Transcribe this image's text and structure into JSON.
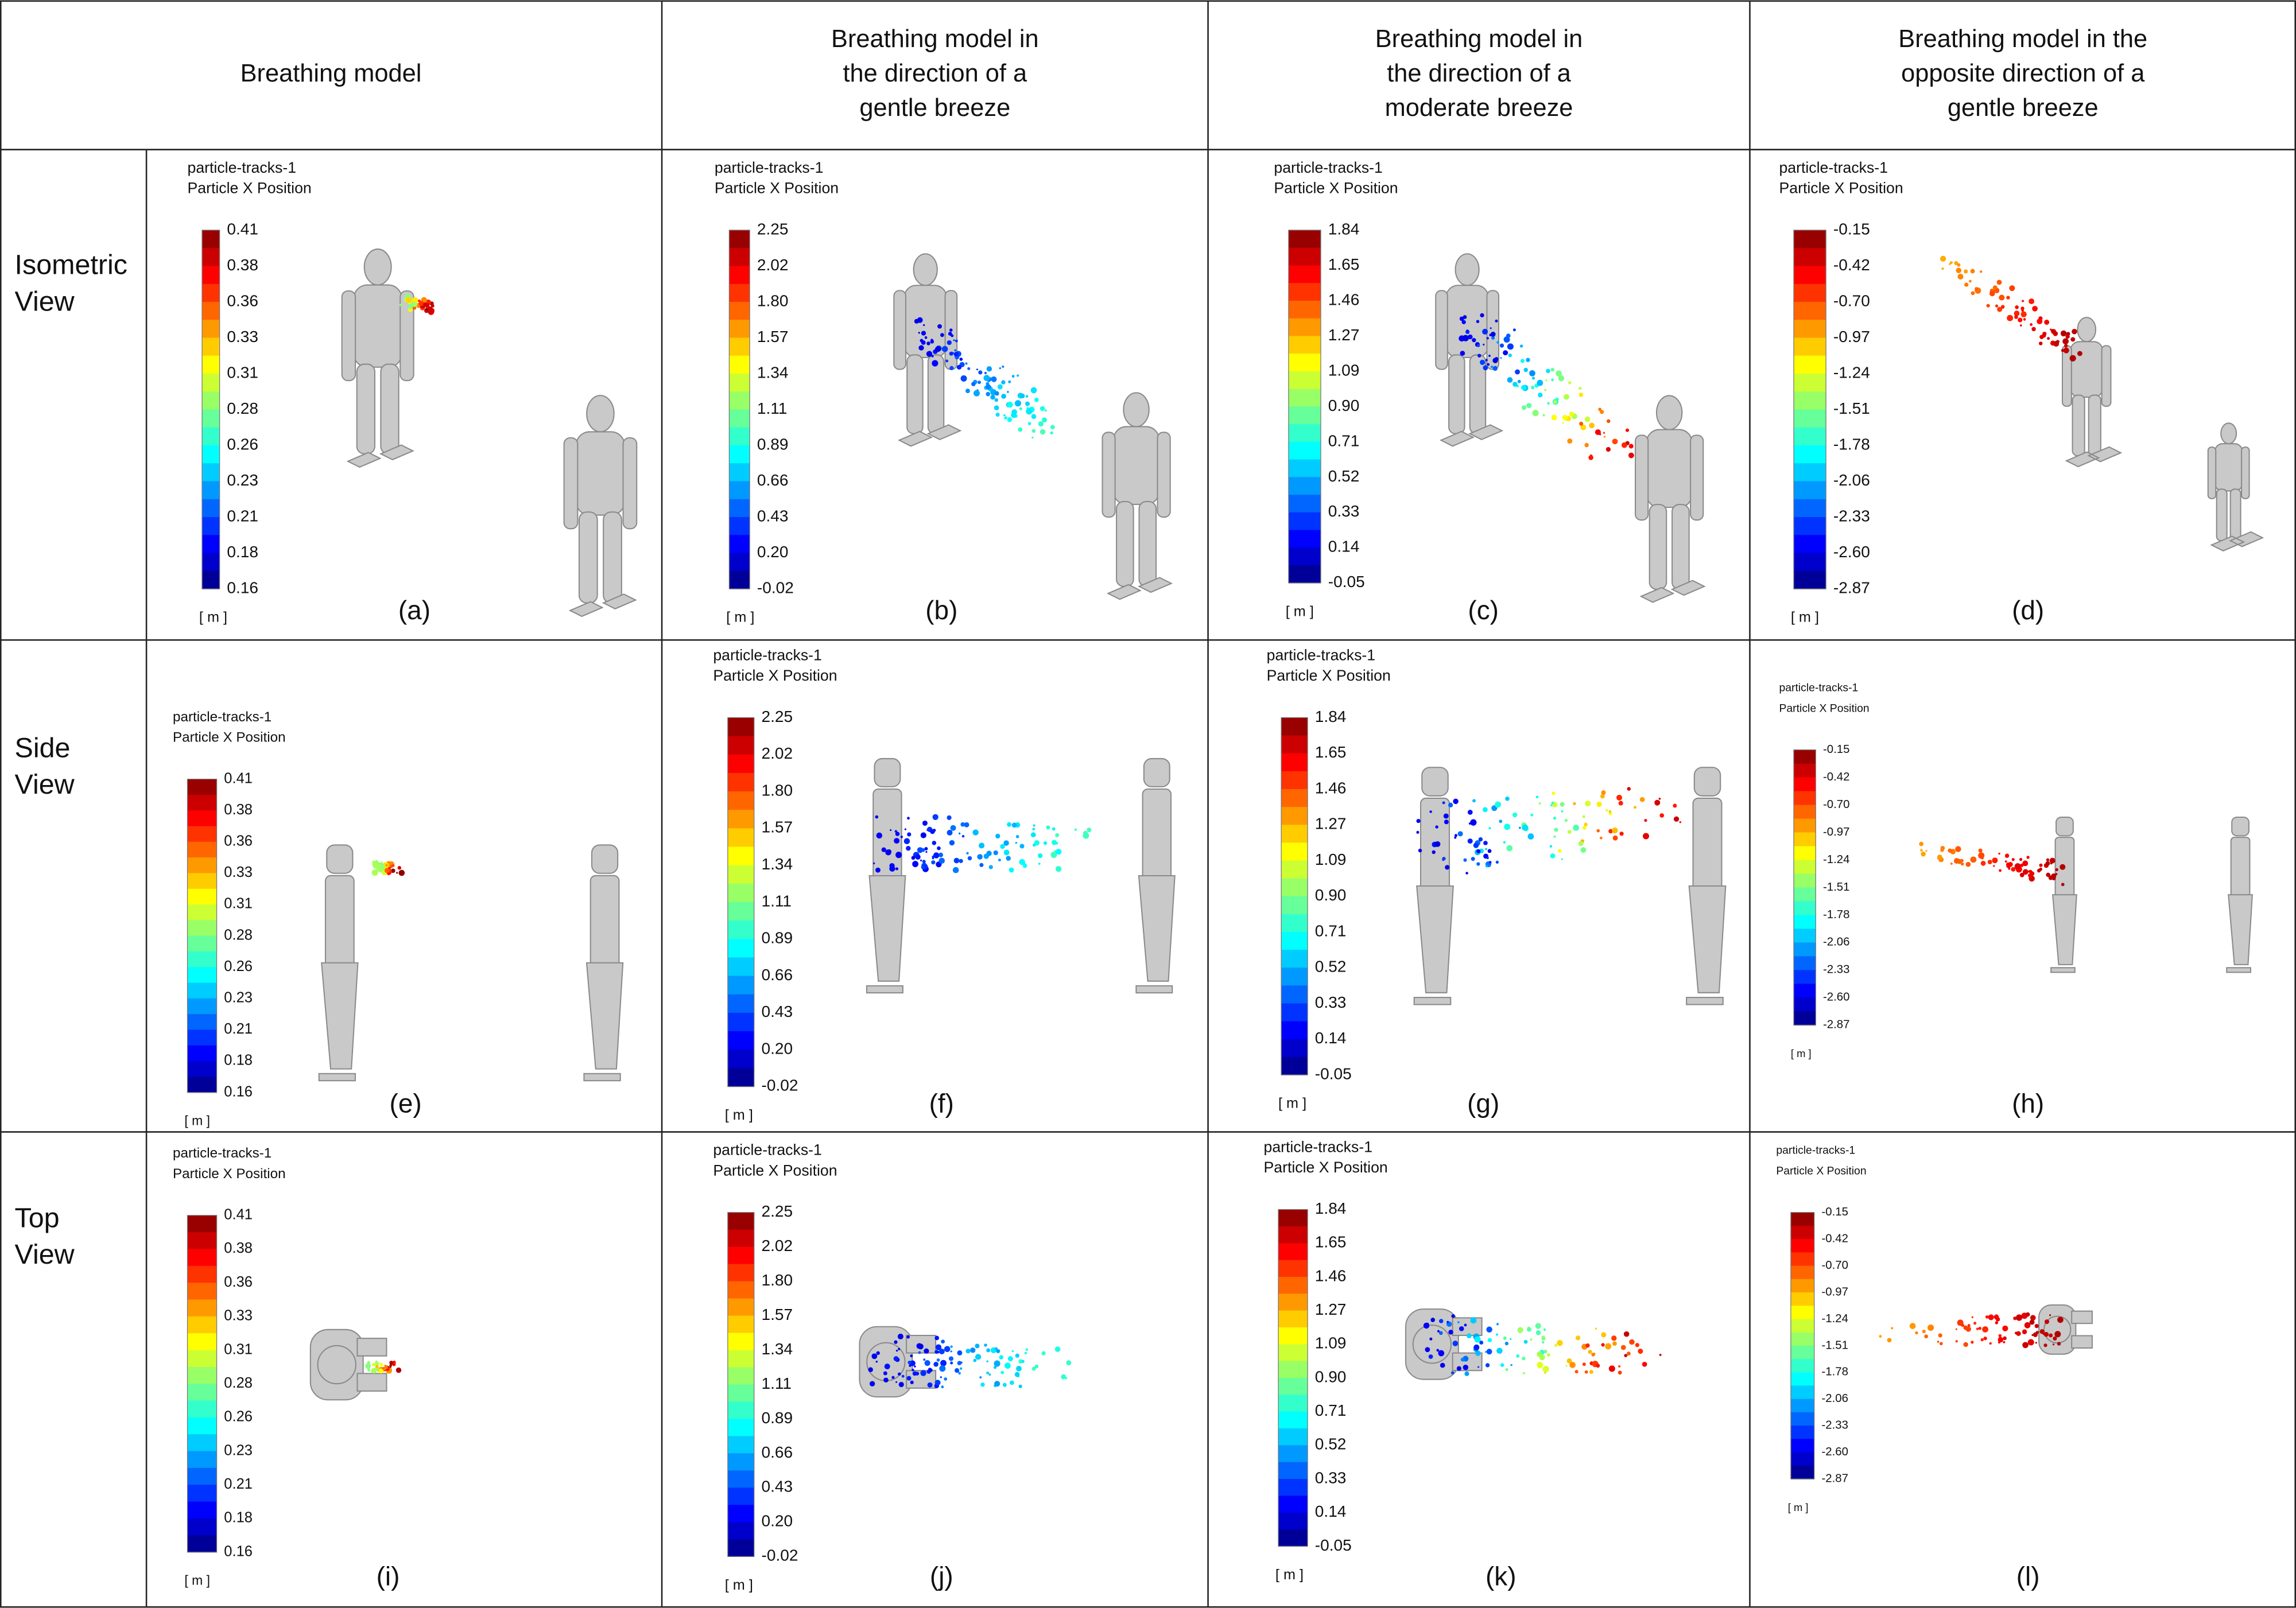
{
  "header": [
    [
      "Breathing model"
    ],
    [
      "Breathing model in",
      "the direction of a",
      "gentle breeze"
    ],
    [
      "Breathing model in",
      "the direction of a",
      "moderate breeze"
    ],
    [
      "Breathing model in the",
      "opposite direction of a",
      "gentle breeze"
    ]
  ],
  "colorbar_ticks": [
    [
      "0.41",
      "0.38",
      "0.36",
      "0.33",
      "0.31",
      "0.28",
      "0.26",
      "0.23",
      "0.21",
      "0.18",
      "0.16"
    ],
    [
      "2.25",
      "2.02",
      "1.80",
      "1.57",
      "1.34",
      "1.11",
      "0.89",
      "0.66",
      "0.43",
      "0.20",
      "-0.02"
    ],
    [
      "1.84",
      "1.65",
      "1.46",
      "1.27",
      "1.09",
      "0.90",
      "0.71",
      "0.52",
      "0.33",
      "0.14",
      "-0.05"
    ],
    [
      "-0.15",
      "-0.42",
      "-0.70",
      "-0.97",
      "-1.24",
      "-1.51",
      "-1.78",
      "-2.06",
      "-2.33",
      "-2.60",
      "-2.87"
    ]
  ],
  "rows": [
    {
      "label": [
        "Isometric",
        "View"
      ],
      "panels": [
        {
          "title": [
            "particle-tracks-1",
            "Particle X Position"
          ],
          "unit": "[ m ]",
          "label": "(a)"
        },
        {
          "title": [
            "particle-tracks-1",
            "Particle X Position"
          ],
          "unit": "[ m ]",
          "label": "(b)"
        },
        {
          "title": [
            "particle-tracks-1",
            "Particle X Position"
          ],
          "unit": "[ m ]",
          "label": "(c)"
        },
        {
          "title": [
            "particle-tracks-1",
            "Particle X Position"
          ],
          "unit": "[ m ]",
          "label": "(d)"
        }
      ]
    },
    {
      "label": [
        "Side",
        "View"
      ],
      "panels": [
        {
          "title": [
            "particle-tracks-1",
            "Particle X Position"
          ],
          "unit": "[ m ]",
          "label": "(e)"
        },
        {
          "title": [
            "particle-tracks-1",
            "Particle X Position"
          ],
          "unit": "[ m ]",
          "label": "(f)"
        },
        {
          "title": [
            "particle-tracks-1",
            "Particle X Position"
          ],
          "unit": "[ m ]",
          "label": "(g)"
        },
        {
          "title": [
            "particle-tracks-1",
            "Particle X Position"
          ],
          "unit": "[ m ]",
          "label": "(h)"
        }
      ]
    },
    {
      "label": [
        "Top",
        "View"
      ],
      "panels": [
        {
          "title": [
            "particle-tracks-1",
            "Particle X Position"
          ],
          "unit": "[ m ]",
          "label": "(i)"
        },
        {
          "title": [
            "particle-tracks-1",
            "Particle X Position"
          ],
          "unit": "[ m ]",
          "label": "(j)"
        },
        {
          "title": [
            "particle-tracks-1",
            "Particle X Position"
          ],
          "unit": "[ m ]",
          "label": "(k)"
        },
        {
          "title": [
            "particle-tracks-1",
            "Particle X Position"
          ],
          "unit": "[ m ]",
          "label": "(l)"
        }
      ]
    }
  ]
}
